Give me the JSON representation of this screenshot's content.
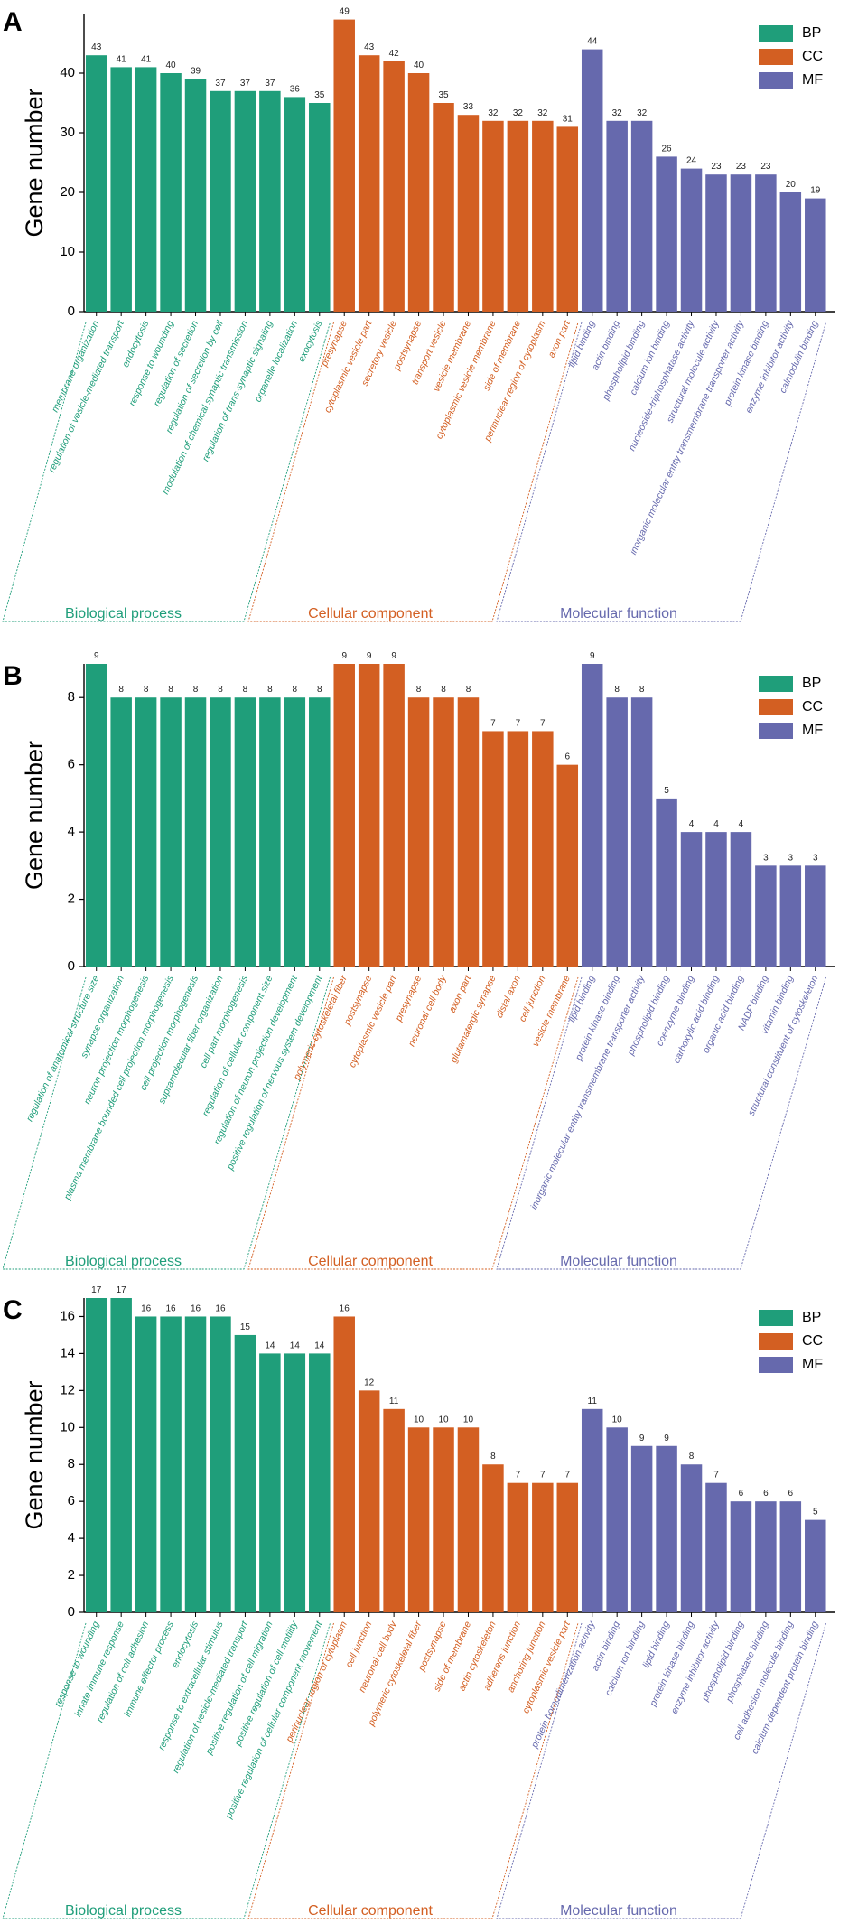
{
  "colors": {
    "BP": "#1f9e7a",
    "CC": "#d35f22",
    "MF": "#6669ad"
  },
  "chart_data": [
    {
      "type": "bar",
      "panel": "A",
      "ylabel": "Gene number",
      "ylim": [
        0,
        50
      ],
      "yticks": [
        0,
        10,
        20,
        30,
        40
      ],
      "legend": [
        "BP",
        "CC",
        "MF"
      ],
      "legend_position": "top-right",
      "group_labels": [
        "Biological process",
        "Cellular component",
        "Molecular function"
      ],
      "categories": [
        "membrane organization",
        "regulation of vesicle-mediated transport",
        "endocytosis",
        "response to wounding",
        "regulation of secretion",
        "regulation of secretion by cell",
        "modulation of chemical synaptic transmission",
        "regulation of trans-synaptic signaling",
        "organelle localization",
        "exocytosis",
        "presynapse",
        "cytoplasmic vesicle part",
        "secretory vesicle",
        "postsynapse",
        "transport vesicle",
        "vesicle membrane",
        "cytoplasmic vesicle membrane",
        "side of membrane",
        "perinuclear region of cytoplasm",
        "axon part",
        "lipid binding",
        "actin binding",
        "phospholipid binding",
        "calcium ion binding",
        "nucleoside-triphosphatase activity",
        "structural molecule activity",
        "inorganic molecular entity transmembrane transporter activity",
        "protein kinase binding",
        "enzyme inhibitor activity",
        "calmodulin binding"
      ],
      "groups": [
        "BP",
        "BP",
        "BP",
        "BP",
        "BP",
        "BP",
        "BP",
        "BP",
        "BP",
        "BP",
        "CC",
        "CC",
        "CC",
        "CC",
        "CC",
        "CC",
        "CC",
        "CC",
        "CC",
        "CC",
        "MF",
        "MF",
        "MF",
        "MF",
        "MF",
        "MF",
        "MF",
        "MF",
        "MF",
        "MF"
      ],
      "values": [
        43,
        41,
        41,
        40,
        39,
        37,
        37,
        37,
        36,
        35,
        49,
        43,
        42,
        40,
        35,
        33,
        32,
        32,
        32,
        31,
        44,
        32,
        32,
        26,
        24,
        23,
        23,
        23,
        20,
        19
      ]
    },
    {
      "type": "bar",
      "panel": "B",
      "ylabel": "Gene number",
      "ylim": [
        0,
        9
      ],
      "yticks": [
        0,
        2,
        4,
        6,
        8
      ],
      "legend": [
        "BP",
        "CC",
        "MF"
      ],
      "legend_position": "top-right",
      "group_labels": [
        "Biological process",
        "Cellular component",
        "Molecular function"
      ],
      "categories": [
        "regulation of anatomical structure size",
        "synapse organization",
        "neuron projection morphogenesis",
        "plasma membrane bounded cell projection morphogenesis",
        "cell projection morphogenesis",
        "supramolecular fiber organization",
        "cell part morphogenesis",
        "regulation of cellular component size",
        "regulation of neuron projection development",
        "positive regulation of nervous system development",
        "polymeric cytoskeletal fiber",
        "postsynapse",
        "cytoplasmic vesicle part",
        "presynapse",
        "neuronal cell body",
        "axon part",
        "glutamatergic synapse",
        "distal axon",
        "cell junction",
        "vesicle membrane",
        "lipid binding",
        "protein kinase binding",
        "inorganic molecular entity transmembrane transporter activity",
        "phospholipid binding",
        "coenzyme binding",
        "carboxylic acid binding",
        "organic acid binding",
        "NADP binding",
        "vitamin binding",
        "structural constituent of cytoskeleton"
      ],
      "groups": [
        "BP",
        "BP",
        "BP",
        "BP",
        "BP",
        "BP",
        "BP",
        "BP",
        "BP",
        "BP",
        "CC",
        "CC",
        "CC",
        "CC",
        "CC",
        "CC",
        "CC",
        "CC",
        "CC",
        "CC",
        "MF",
        "MF",
        "MF",
        "MF",
        "MF",
        "MF",
        "MF",
        "MF",
        "MF",
        "MF"
      ],
      "values": [
        9,
        8,
        8,
        8,
        8,
        8,
        8,
        8,
        8,
        8,
        9,
        9,
        9,
        8,
        8,
        8,
        7,
        7,
        7,
        6,
        9,
        8,
        8,
        5,
        4,
        4,
        4,
        3,
        3,
        3
      ]
    },
    {
      "type": "bar",
      "panel": "C",
      "ylabel": "Gene number",
      "ylim": [
        0,
        17
      ],
      "yticks": [
        0,
        2,
        4,
        6,
        8,
        10,
        12,
        14,
        16
      ],
      "legend": [
        "BP",
        "CC",
        "MF"
      ],
      "legend_position": "top-right",
      "group_labels": [
        "Biological process",
        "Cellular component",
        "Molecular function"
      ],
      "categories": [
        "response to wounding",
        "innate immune response",
        "regulation of cell adhesion",
        "immune effector process",
        "endocytosis",
        "response to extracellular stimulus",
        "regulation of vesicle-mediated transport",
        "positive regulation of cell migration",
        "positive regulation of cell motility",
        "positive regulation of cellular component movement",
        "perinuclear region of cytoplasm",
        "cell junction",
        "neuronal cell body",
        "polymeric cytoskeletal fiber",
        "postsynapse",
        "side of membrane",
        "actin cytoskeleton",
        "adherens junction",
        "anchoring junction",
        "cytoplasmic vesicle part",
        "protein homodimerization activity",
        "actin binding",
        "calcium ion binding",
        "lipid binding",
        "protein kinase binding",
        "enzyme inhibitor activity",
        "phospholipid binding",
        "phosphatase binding",
        "cell adhesion molecule binding",
        "calcium-dependent protein binding"
      ],
      "groups": [
        "BP",
        "BP",
        "BP",
        "BP",
        "BP",
        "BP",
        "BP",
        "BP",
        "BP",
        "BP",
        "CC",
        "CC",
        "CC",
        "CC",
        "CC",
        "CC",
        "CC",
        "CC",
        "CC",
        "CC",
        "MF",
        "MF",
        "MF",
        "MF",
        "MF",
        "MF",
        "MF",
        "MF",
        "MF",
        "MF"
      ],
      "values": [
        17,
        17,
        16,
        16,
        16,
        16,
        15,
        14,
        14,
        14,
        16,
        12,
        11,
        10,
        10,
        10,
        8,
        7,
        7,
        7,
        11,
        10,
        9,
        9,
        8,
        7,
        6,
        6,
        6,
        5
      ]
    }
  ]
}
